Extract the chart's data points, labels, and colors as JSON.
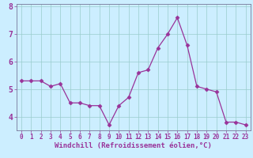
{
  "x": [
    0,
    1,
    2,
    3,
    4,
    5,
    6,
    7,
    8,
    9,
    10,
    11,
    12,
    13,
    14,
    15,
    16,
    17,
    18,
    19,
    20,
    21,
    22,
    23
  ],
  "y": [
    5.3,
    5.3,
    5.3,
    5.1,
    5.2,
    4.5,
    4.5,
    4.4,
    4.4,
    3.7,
    4.4,
    4.7,
    5.6,
    5.7,
    6.5,
    7.0,
    7.6,
    6.6,
    5.1,
    5.0,
    4.9,
    3.8,
    3.8,
    3.7
  ],
  "line_color": "#993399",
  "marker": "D",
  "marker_size": 2.5,
  "bg_color": "#cceeff",
  "grid_color": "#99cccc",
  "xlabel": "Windchill (Refroidissement éolien,°C)",
  "xlabel_color": "#993399",
  "tick_color": "#993399",
  "ylim": [
    3.5,
    8.1
  ],
  "xlim": [
    -0.5,
    23.5
  ],
  "yticks": [
    4,
    5,
    6,
    7,
    8
  ],
  "xticks": [
    0,
    1,
    2,
    3,
    4,
    5,
    6,
    7,
    8,
    9,
    10,
    11,
    12,
    13,
    14,
    15,
    16,
    17,
    18,
    19,
    20,
    21,
    22,
    23
  ]
}
